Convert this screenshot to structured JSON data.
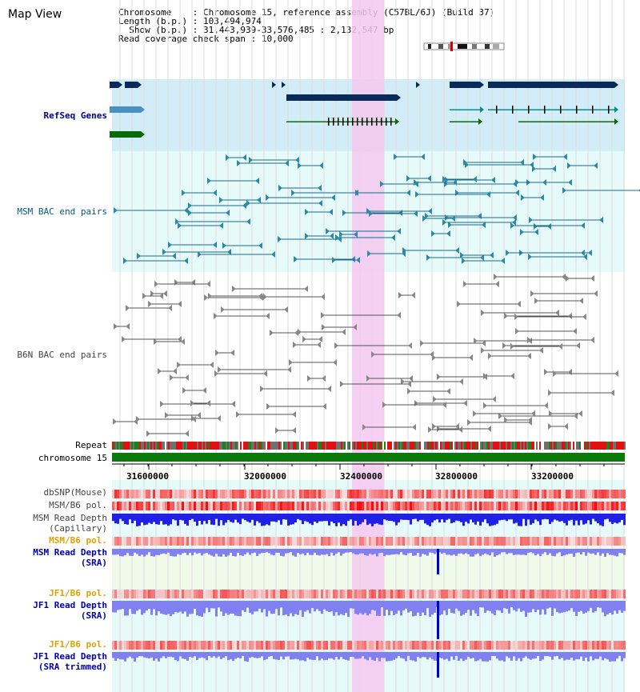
{
  "page": {
    "title": "Map View"
  },
  "info": {
    "chromosome_label": "Chromosome",
    "chromosome_value": "Chromosome 15, reference assembly (C57BL/6J) (Build 37)",
    "length_label": "Length (b.p.)",
    "length_value": "103,494,974",
    "show_label": "Show (b.p.)",
    "show_value": "31,443,939-33,576,485 : 2,132,547 bp",
    "coverage_label": "Read coverage check span",
    "coverage_value": "10,000"
  },
  "tracks": {
    "refseq": "RefSeq Genes",
    "msm_bac": "MSM BAC end pairs",
    "b6n_bac": "B6N BAC end pairs",
    "repeat": "Repeat",
    "chromosome": "chromosome 15",
    "dbsnp": "dbSNP(Mouse)",
    "msm_b6_pol": "MSM/B6 pol.",
    "msm_depth_cap_1": "MSM Read Depth",
    "msm_depth_cap_2": "(Capillary)",
    "msm_b6_pol_2": "MSM/B6 pol.",
    "msm_depth_sra_1": "MSM Read Depth",
    "msm_depth_sra_2": "(SRA)",
    "jf1_b6_pol": "JF1/B6 pol.",
    "jf1_depth_sra_1": "JF1 Read Depth",
    "jf1_depth_sra_2": "(SRA)",
    "jf1_b6_pol_2": "JF1/B6 pol.",
    "jf1_depth_trim_1": "JF1 Read Depth",
    "jf1_depth_trim_2": "(SRA trimmed)"
  },
  "axis": {
    "ticks": [
      "31600000",
      "32000000",
      "32400000",
      "32800000",
      "33200000"
    ]
  },
  "colors": {
    "refseq_label": "#000080",
    "msm_label": "#005a78",
    "b6n_label": "#444444",
    "pol_orange": "#e0a000",
    "sra_blue": "#0000aa",
    "highlight": "#f5c8f0",
    "refseq_bg": "#d2ecf8",
    "msm_bg": "#e6fafa",
    "gene_dark": "#0a2a5a",
    "gene_teal": "#0a8a8a",
    "gene_green": "#0a6a0a",
    "depth_blue": "#2020e8",
    "depth_light": "#8080f0",
    "chrom_green": "#0a7a0a"
  }
}
